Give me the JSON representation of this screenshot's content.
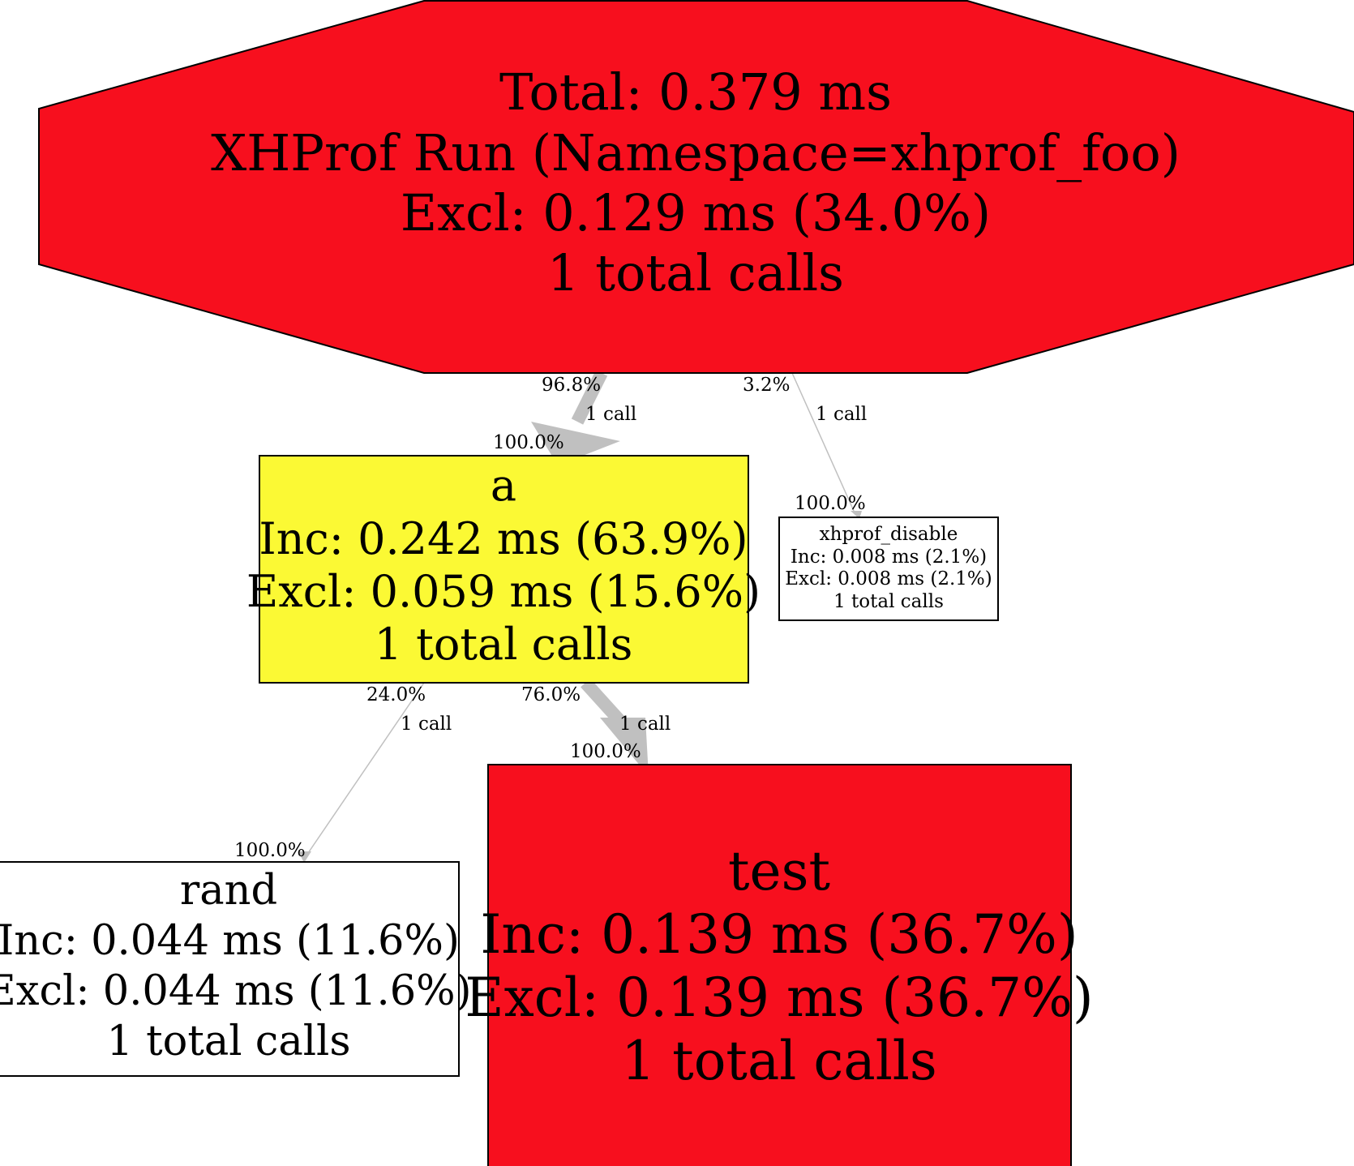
{
  "colors": {
    "hot": "#f70f1e",
    "warm": "#fbf934",
    "cold": "#ffffff",
    "edge": "#c0c0c0",
    "border": "#000000"
  },
  "nodes": {
    "root": {
      "lines": [
        "Total: 0.379 ms",
        "XHProf Run (Namespace=xhprof_foo)",
        "Excl: 0.129 ms (34.0%)",
        "1 total calls"
      ],
      "shape": "octagon",
      "fill": "hot"
    },
    "a": {
      "lines": [
        "a",
        "Inc: 0.242 ms (63.9%)",
        "Excl: 0.059 ms (15.6%)",
        "1 total calls"
      ],
      "shape": "box",
      "fill": "warm"
    },
    "xhprof_disable": {
      "lines": [
        "xhprof_disable",
        "Inc: 0.008 ms (2.1%)",
        "Excl: 0.008 ms (2.1%)",
        "1 total calls"
      ],
      "shape": "box",
      "fill": "cold"
    },
    "rand": {
      "lines": [
        "rand",
        "Inc: 0.044 ms (11.6%)",
        "Excl: 0.044 ms (11.6%)",
        "1 total calls"
      ],
      "shape": "box",
      "fill": "cold"
    },
    "test": {
      "lines": [
        "test",
        "Inc: 0.139 ms (36.7%)",
        "Excl: 0.139 ms (36.7%)",
        "1 total calls"
      ],
      "shape": "box",
      "fill": "hot"
    }
  },
  "edges": [
    {
      "from": "root",
      "to": "a",
      "tail_label": "96.8%",
      "label": "1 call",
      "head_label": "100.0%"
    },
    {
      "from": "root",
      "to": "xhprof_disable",
      "tail_label": "3.2%",
      "label": "1 call",
      "head_label": "100.0%"
    },
    {
      "from": "a",
      "to": "rand",
      "tail_label": "24.0%",
      "label": "1 call",
      "head_label": "100.0%"
    },
    {
      "from": "a",
      "to": "test",
      "tail_label": "76.0%",
      "label": "1 call",
      "head_label": "100.0%"
    }
  ]
}
